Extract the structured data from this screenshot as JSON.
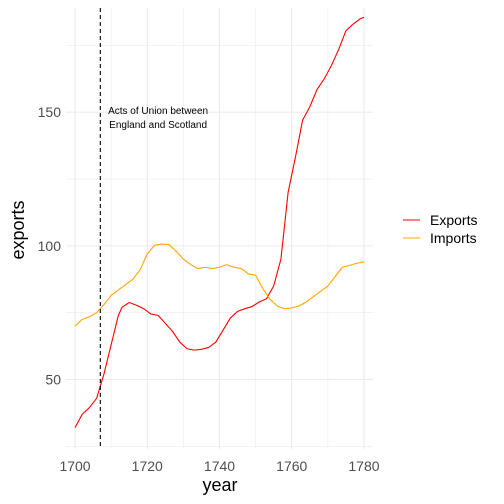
{
  "chart_data": {
    "type": "line",
    "title": "",
    "xlabel": "year",
    "ylabel": "exports",
    "xlim": [
      1697.5,
      1782.5
    ],
    "ylim": [
      24,
      189
    ],
    "x_ticks": [
      1700,
      1720,
      1740,
      1760,
      1780
    ],
    "y_ticks": [
      50,
      100,
      150
    ],
    "grid": true,
    "legend_position": "right",
    "series": [
      {
        "name": "Exports",
        "color": "#ff0000",
        "points": [
          [
            1700,
            32
          ],
          [
            1702,
            37
          ],
          [
            1704,
            39.5
          ],
          [
            1706,
            43
          ],
          [
            1708,
            52
          ],
          [
            1710,
            63
          ],
          [
            1712,
            74
          ],
          [
            1713,
            77
          ],
          [
            1715,
            78.8
          ],
          [
            1717,
            77.8
          ],
          [
            1719,
            76.5
          ],
          [
            1721,
            74.5
          ],
          [
            1723,
            74
          ],
          [
            1725,
            71
          ],
          [
            1727,
            68
          ],
          [
            1729,
            64
          ],
          [
            1731,
            61.5
          ],
          [
            1733,
            61
          ],
          [
            1735,
            61.3
          ],
          [
            1737,
            62
          ],
          [
            1739,
            64
          ],
          [
            1741,
            68.5
          ],
          [
            1743,
            73
          ],
          [
            1745,
            75.5
          ],
          [
            1747,
            76.5
          ],
          [
            1749,
            77.3
          ],
          [
            1751,
            79
          ],
          [
            1753,
            80.2
          ],
          [
            1755,
            85
          ],
          [
            1757,
            95
          ],
          [
            1759,
            120
          ],
          [
            1761,
            133
          ],
          [
            1763,
            147
          ],
          [
            1765,
            152
          ],
          [
            1767,
            158.5
          ],
          [
            1769,
            162.5
          ],
          [
            1771,
            167.5
          ],
          [
            1773,
            173.5
          ],
          [
            1775,
            180.5
          ],
          [
            1777,
            183
          ],
          [
            1779,
            185
          ],
          [
            1780,
            185.5
          ]
        ]
      },
      {
        "name": "Imports",
        "color": "#ffa500",
        "points": [
          [
            1700,
            70
          ],
          [
            1702,
            72.5
          ],
          [
            1704,
            73.5
          ],
          [
            1706,
            75
          ],
          [
            1708,
            78
          ],
          [
            1710,
            81.5
          ],
          [
            1712,
            83.5
          ],
          [
            1714,
            85.5
          ],
          [
            1716,
            87.5
          ],
          [
            1718,
            91
          ],
          [
            1720,
            97
          ],
          [
            1722,
            100.2
          ],
          [
            1724,
            100.7
          ],
          [
            1726,
            100.5
          ],
          [
            1728,
            98
          ],
          [
            1730,
            95
          ],
          [
            1732,
            93
          ],
          [
            1734,
            91.5
          ],
          [
            1736,
            92
          ],
          [
            1738,
            91.5
          ],
          [
            1740,
            92
          ],
          [
            1742,
            93
          ],
          [
            1744,
            92
          ],
          [
            1746,
            91.5
          ],
          [
            1748,
            89.5
          ],
          [
            1750,
            89
          ],
          [
            1752,
            84
          ],
          [
            1754,
            80
          ],
          [
            1756,
            77.5
          ],
          [
            1758,
            76.5
          ],
          [
            1760,
            76.8
          ],
          [
            1762,
            77.5
          ],
          [
            1764,
            79
          ],
          [
            1766,
            81
          ],
          [
            1768,
            83
          ],
          [
            1770,
            85
          ],
          [
            1772,
            88.5
          ],
          [
            1774,
            92
          ],
          [
            1776,
            92.7
          ],
          [
            1778,
            93.5
          ],
          [
            1780,
            94
          ]
        ]
      }
    ],
    "annotations": [
      {
        "type": "vline",
        "x": 1707,
        "style": "dashed",
        "color": "#000000"
      },
      {
        "type": "text",
        "x": 1723,
        "y": 148,
        "lines": [
          "Acts of Union between",
          "England and Scotland"
        ]
      }
    ]
  }
}
